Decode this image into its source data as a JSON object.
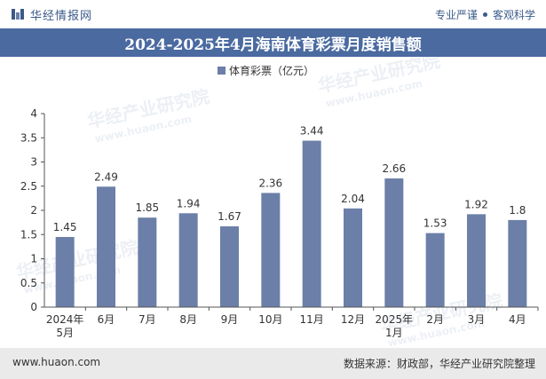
{
  "header": {
    "brand": "华经情报网",
    "tag_left": "专业严谨",
    "tag_right": "客观科学"
  },
  "title": "2024-2025年4月海南体育彩票月度销售额",
  "footer": {
    "url": "www.huaon.com",
    "source": "数据来源：财政部，华经产业研究院整理"
  },
  "watermark": {
    "text": "华经产业研究院",
    "url": "www.huaon.com"
  },
  "colors": {
    "bar": "#6b7fa8",
    "title_bg": "#4a6aa0",
    "brand": "#3b5a8a"
  },
  "chart_data": {
    "type": "bar",
    "categories": [
      "2024年\n5月",
      "6月",
      "7月",
      "8月",
      "9月",
      "10月",
      "11月",
      "12月",
      "2025年\n1月",
      "2月",
      "3月",
      "4月"
    ],
    "series": [
      {
        "name": "体育彩票（亿元）",
        "values": [
          1.45,
          2.49,
          1.85,
          1.94,
          1.67,
          2.36,
          3.44,
          2.04,
          2.66,
          1.53,
          1.92,
          1.8
        ]
      }
    ],
    "ylim": [
      0,
      4
    ],
    "yticks": [
      "0",
      "0.5",
      "1",
      "1.5",
      "2",
      "2.5",
      "3",
      "3.5",
      "4"
    ],
    "grid": false,
    "legend": "top-center"
  }
}
